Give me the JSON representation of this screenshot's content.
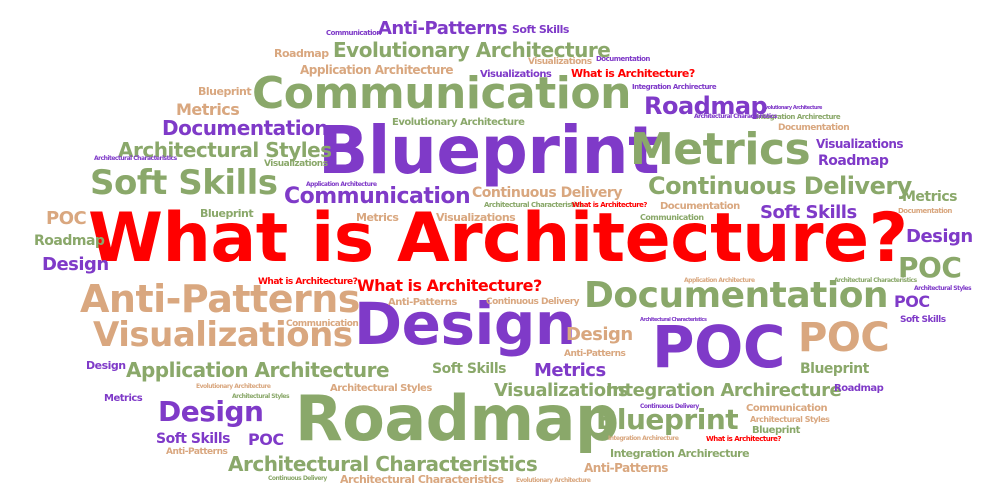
{
  "colors": {
    "red": "#ff0000",
    "purple": "#7f3ac8",
    "green": "#8aa86a",
    "tan": "#d9a77f"
  },
  "words": {
    "what_is_architecture": "What is Architecture?",
    "blueprint": "Blueprint",
    "communication": "Communication",
    "metrics": "Metrics",
    "roadmap": "Roadmap",
    "design": "Design",
    "poc": "POC",
    "documentation": "Documentation",
    "anti_patterns": "Anti-Patterns",
    "visualizations": "Visualizations",
    "soft_skills": "Soft Skills",
    "continuous_delivery": "Continuous Delivery",
    "application_architecture": "Application Architecture",
    "architectural_characteristics": "Architectural Characteristics",
    "architectural_styles": "Architectural Styles",
    "evolutionary_architecture": "Evolutionary Architecture",
    "integration_archirecture": "Integration Archirecture"
  }
}
